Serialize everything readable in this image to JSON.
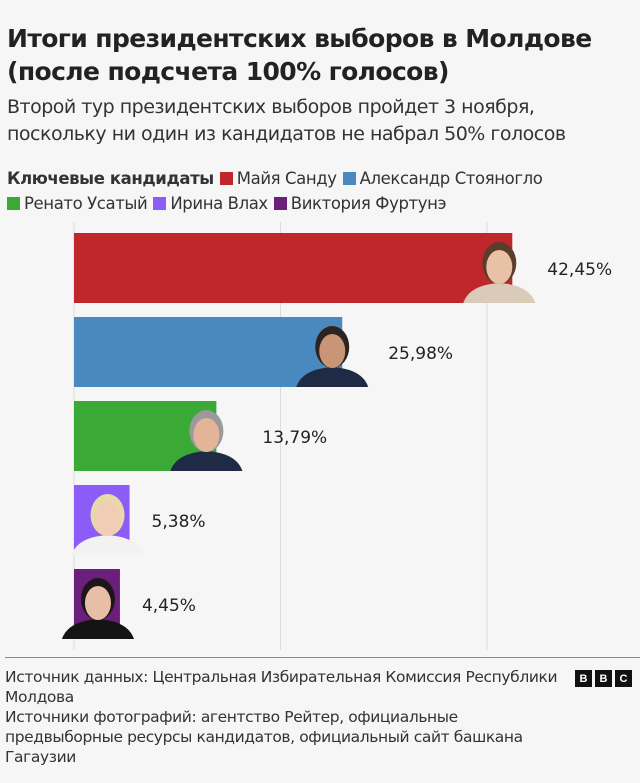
{
  "title": "Итоги президентских выборов в Молдове (после подсчета 100% голосов)",
  "subtitle": "Второй тур президентских выборов пройдет 3 ноября, поскольку ни один из кандидатов не набрал 50% голосов",
  "legend": {
    "heading": "Ключевые кандидаты",
    "position": "top"
  },
  "chart_data": {
    "type": "bar",
    "orientation": "horizontal",
    "categories": [
      "Майя Санду",
      "Александр Стояногло",
      "Ренато Усатый",
      "Ирина Влах",
      "Виктория Фуртунэ"
    ],
    "values": [
      42.45,
      25.98,
      13.79,
      5.38,
      4.45
    ],
    "data_labels": [
      "42,45%",
      "25,98%",
      "13,79%",
      "5,38%",
      "4,45%"
    ],
    "colors": [
      "#c0272d",
      "#4a89c0",
      "#3aa935",
      "#8b5cf6",
      "#6c1f7a"
    ],
    "unit": "%",
    "xlim": [
      0,
      45
    ],
    "gridlines": [
      0,
      20,
      40
    ],
    "grid": true,
    "title": "Итоги президентских выборов в Молдове (после подсчета 100% голосов)",
    "xlabel": "",
    "ylabel": ""
  },
  "footer": {
    "source_data": "Источник данных: Центральная Избирательная Комиссия Республики Молдова",
    "source_photos": "Источники фотографий: агентство Рейтер, официальные предвыборные ресурсы кандидатов, официальный сайт башкана Гагаузии",
    "logo": [
      "B",
      "B",
      "C"
    ]
  }
}
